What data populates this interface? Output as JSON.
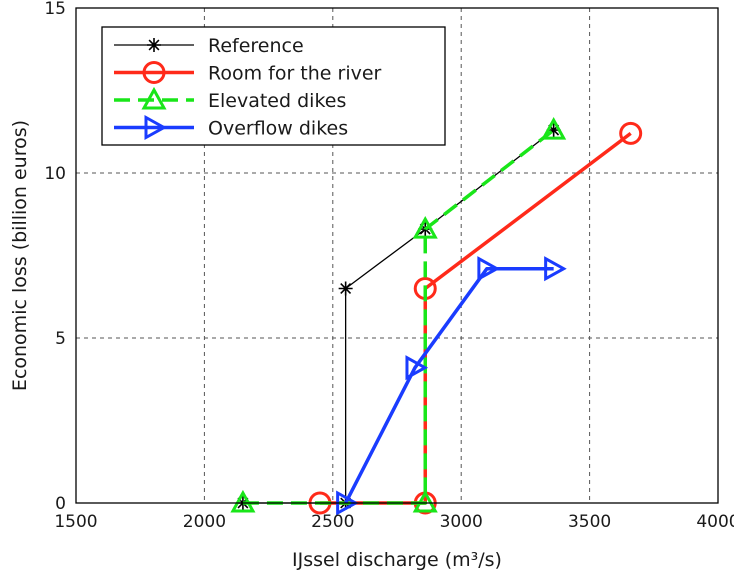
{
  "chart_data": {
    "type": "line",
    "xlabel": "IJssel discharge (m³/s)",
    "ylabel": "Economic loss (billion euros)",
    "xlim": [
      1500,
      4000
    ],
    "ylim": [
      0,
      15
    ],
    "xticks": [
      "1500",
      "2000",
      "2500",
      "3000",
      "3500",
      "4000"
    ],
    "yticks": [
      "0",
      "5",
      "10",
      "15"
    ],
    "grid": true,
    "legend_position": "top-left",
    "series": [
      {
        "name": "Reference",
        "color": "#000000",
        "marker": "asterisk",
        "line": "solid",
        "points": [
          [
            2150,
            0
          ],
          [
            2550,
            0
          ],
          [
            2550,
            6.5
          ],
          [
            2860,
            8.3
          ],
          [
            3360,
            11.3
          ]
        ]
      },
      {
        "name": "Room for the river",
        "color": "#ff2a1a",
        "marker": "circle",
        "line": "solid",
        "points": [
          [
            2450,
            0
          ],
          [
            2860,
            0
          ],
          [
            2860,
            6.5
          ],
          [
            3660,
            11.2
          ]
        ]
      },
      {
        "name": "Elevated dikes",
        "color": "#19e619",
        "marker": "triangle-up",
        "line": "dashed",
        "points": [
          [
            2150,
            0
          ],
          [
            2860,
            0
          ],
          [
            2860,
            8.3
          ],
          [
            3360,
            11.3
          ]
        ]
      },
      {
        "name": "Overflow dikes",
        "color": "#1a3cff",
        "marker": "triangle-right",
        "line": "solid",
        "points": [
          [
            2550,
            0
          ],
          [
            2820,
            4.1
          ],
          [
            3100,
            7.1
          ],
          [
            3360,
            7.1
          ]
        ]
      }
    ]
  }
}
